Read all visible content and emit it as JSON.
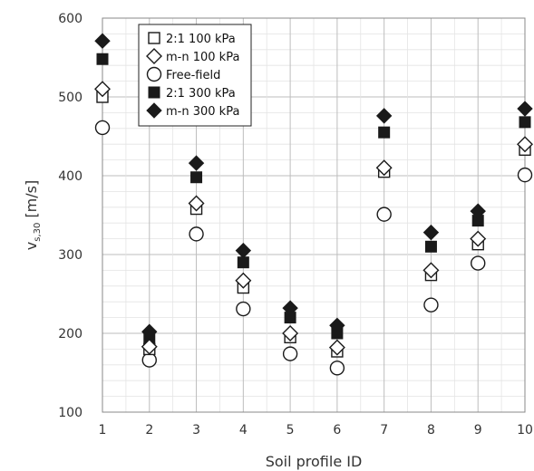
{
  "chart_data": {
    "type": "scatter",
    "title": "",
    "xlabel": "Soil profile ID",
    "ylabel_main": "v",
    "ylabel_sub": "s,30",
    "ylabel_unit": " [m/s]",
    "x_categories": [
      "1",
      "2",
      "3",
      "4",
      "5",
      "6",
      "7",
      "8",
      "9",
      "10"
    ],
    "y_ticks": [
      "100",
      "200",
      "300",
      "400",
      "500",
      "600"
    ],
    "ylim": [
      100,
      600
    ],
    "grid": true,
    "legend_position": "top-left",
    "series": [
      {
        "name": "2:1 100 kPa",
        "marker": "open-square",
        "values": [
          500,
          180,
          358,
          258,
          195,
          177,
          405,
          274,
          313,
          433
        ]
      },
      {
        "name": "m-n 100 kPa",
        "marker": "open-diamond",
        "values": [
          510,
          183,
          365,
          267,
          200,
          182,
          410,
          280,
          320,
          440
        ]
      },
      {
        "name": "Free-field",
        "marker": "open-circle",
        "values": [
          461,
          166,
          326,
          231,
          174,
          156,
          351,
          236,
          289,
          401
        ]
      },
      {
        "name": "2:1 300 kPa",
        "marker": "filled-square",
        "values": [
          548,
          193,
          398,
          290,
          220,
          200,
          455,
          310,
          343,
          468
        ]
      },
      {
        "name": "m-n 300 kPa",
        "marker": "filled-diamond",
        "values": [
          571,
          202,
          416,
          305,
          232,
          210,
          476,
          328,
          355,
          485
        ]
      }
    ]
  }
}
